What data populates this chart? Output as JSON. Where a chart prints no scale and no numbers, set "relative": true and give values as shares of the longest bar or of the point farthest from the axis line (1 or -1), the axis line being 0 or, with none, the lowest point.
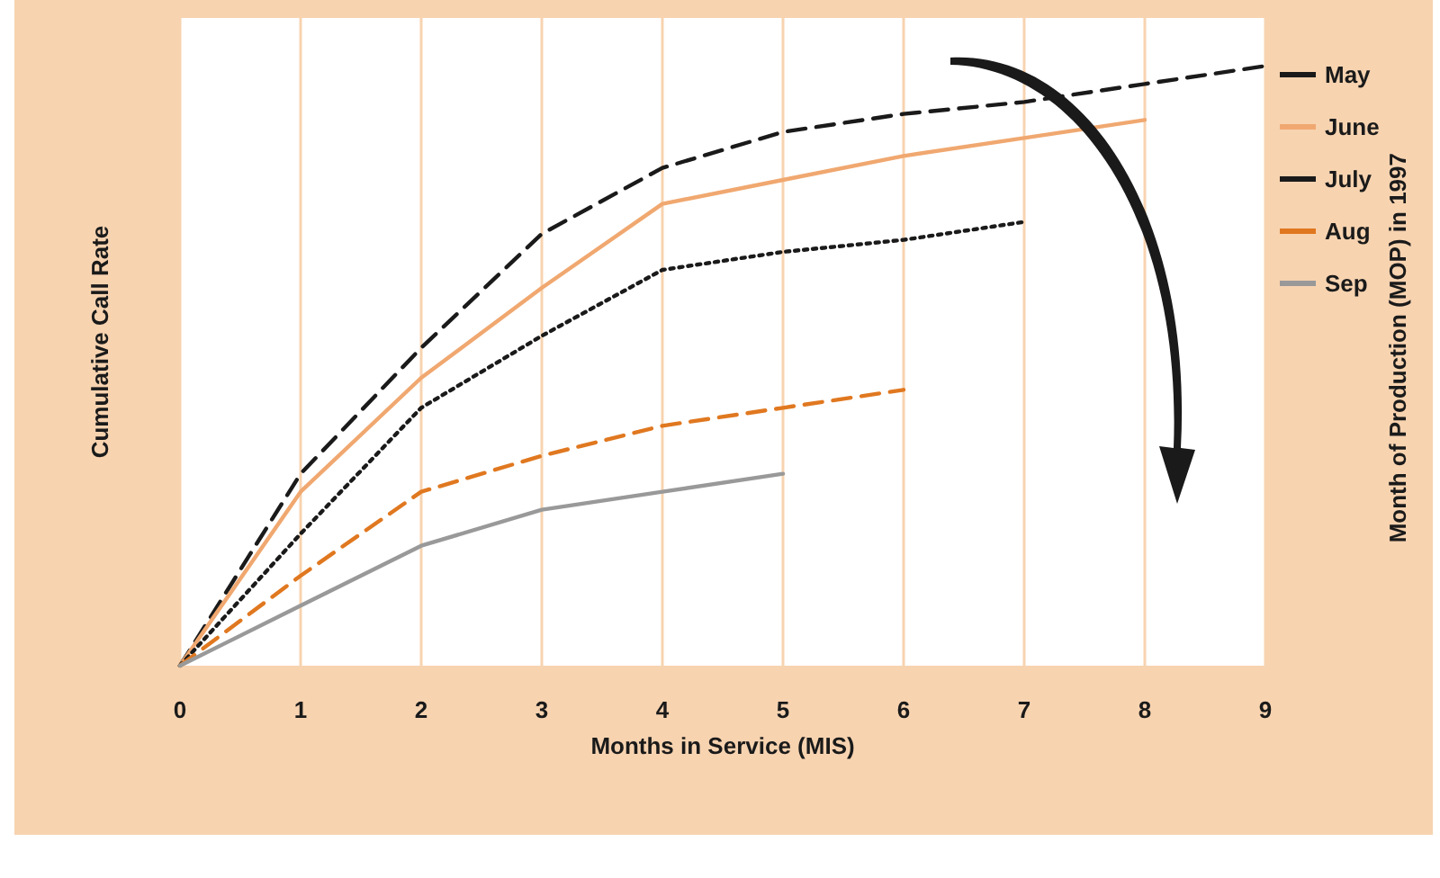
{
  "chart_data": {
    "type": "line",
    "relative": true,
    "xlabel": "Months in Service (MIS)",
    "ylabel": "Cumulative Call Rate",
    "legend_title": "Month of Production (MOP) in 1997",
    "x": [
      0,
      1,
      2,
      3,
      4,
      5,
      6,
      7,
      8,
      9
    ],
    "xlim": [
      0,
      9
    ],
    "xticks": [
      0,
      1,
      2,
      3,
      4,
      5,
      6,
      7,
      8,
      9
    ],
    "grid": "x",
    "legend": "right",
    "marker": "none",
    "series": [
      {
        "name": "May",
        "color": "#1a1a1a",
        "line_style": "dashed",
        "values": [
          0,
          0.32,
          0.53,
          0.72,
          0.83,
          0.89,
          0.92,
          0.94,
          0.97,
          1
        ]
      },
      {
        "name": "June",
        "color": "#f0a870",
        "line_style": "solid",
        "values": [
          0,
          0.29,
          0.48,
          0.63,
          0.77,
          0.81,
          0.85,
          0.88,
          0.91,
          null
        ]
      },
      {
        "name": "July",
        "color": "#1a1a1a",
        "line_style": "dotted",
        "values": [
          0,
          0.22,
          0.43,
          0.55,
          0.66,
          0.69,
          0.71,
          0.74,
          null,
          null
        ]
      },
      {
        "name": "Aug",
        "color": "#e07820",
        "line_style": "dashed",
        "values": [
          0,
          0.15,
          0.29,
          0.35,
          0.4,
          0.43,
          0.46,
          null,
          null,
          null
        ]
      },
      {
        "name": "Sep",
        "color": "#999999",
        "line_style": "solid",
        "values": [
          0,
          0.1,
          0.2,
          0.26,
          0.29,
          0.32,
          null,
          null,
          null,
          null
        ]
      }
    ]
  }
}
